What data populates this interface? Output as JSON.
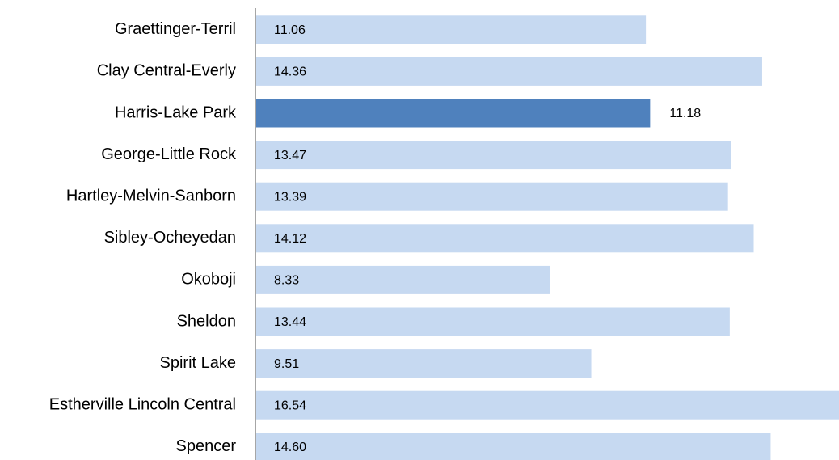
{
  "chart_data": {
    "type": "barh",
    "categories": [
      "Graettinger-Terril",
      "Clay Central-Everly",
      "Harris-Lake Park",
      "George-Little Rock",
      "Hartley-Melvin-Sanborn",
      "Sibley-Ocheyedan",
      "Okoboji",
      "Sheldon",
      "Spirit Lake",
      "Estherville Lincoln Central",
      "Spencer"
    ],
    "values": [
      11.06,
      14.36,
      11.18,
      13.47,
      13.39,
      14.12,
      8.33,
      13.44,
      9.51,
      16.54,
      14.6
    ],
    "value_labels": [
      "11.06",
      "14.36",
      "11.18",
      "13.47",
      "13.39",
      "14.12",
      "8.33",
      "13.44",
      "9.51",
      "16.54",
      "14.60"
    ],
    "colors": [
      "#c6d9f1",
      "#c6d9f1",
      "#4f81bd",
      "#c6d9f1",
      "#c6d9f1",
      "#c6d9f1",
      "#c6d9f1",
      "#c6d9f1",
      "#c6d9f1",
      "#c6d9f1",
      "#c6d9f1"
    ],
    "xlim": [
      0,
      16.54
    ]
  }
}
